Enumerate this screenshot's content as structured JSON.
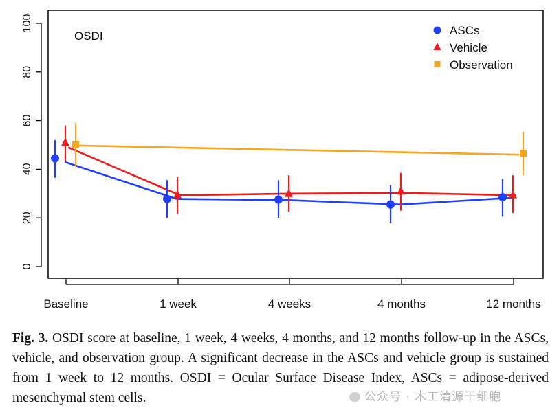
{
  "chart_data": {
    "type": "line",
    "panel_label": "OSDI",
    "categories": [
      "Baseline",
      "1 week",
      "4 weeks",
      "4 months",
      "12 months"
    ],
    "ylim": [
      0,
      100
    ],
    "yticks": [
      "0",
      "20",
      "40",
      "60",
      "80",
      "100"
    ],
    "legend_position": "top-right",
    "series": [
      {
        "name": "ASCs",
        "color": "#1f3fff",
        "marker": "circle",
        "values": [
          44.5,
          27.8,
          27.5,
          25.5,
          28.5
        ],
        "err_low": [
          36.5,
          20.0,
          19.8,
          17.8,
          20.5
        ],
        "err_high": [
          52.0,
          35.5,
          35.5,
          33.5,
          36.0
        ],
        "line_values": [
          43.0,
          27.8,
          27.3,
          25.5,
          28.3
        ]
      },
      {
        "name": "Vehicle",
        "color": "#ee1c1c",
        "marker": "triangle",
        "values": [
          51.0,
          29.5,
          30.0,
          31.0,
          29.5
        ],
        "err_low": [
          43.0,
          21.5,
          22.5,
          23.0,
          22.0
        ],
        "err_high": [
          58.0,
          37.0,
          37.5,
          38.5,
          37.5
        ],
        "line_values": [
          49.0,
          29.3,
          30.0,
          30.3,
          29.3
        ]
      },
      {
        "name": "Observation",
        "color": "#f5a623",
        "marker": "square",
        "values": [
          50.0,
          null,
          null,
          null,
          46.5
        ],
        "err_low": [
          41.0,
          null,
          null,
          null,
          37.5
        ],
        "err_high": [
          59.0,
          null,
          null,
          null,
          55.5
        ],
        "line_values": [
          49.8,
          null,
          null,
          null,
          46.0
        ]
      }
    ]
  },
  "caption": {
    "fig_label": "Fig. 3.",
    "text": " OSDI score at baseline, 1 week, 4 weeks, 4 months, and 12 months follow-up in the ASCs, vehicle, and observation group. A significant decrease in the ASCs and vehicle group is sustained from 1 week to 12 months. OSDI = Ocular Surface Disease Index, ASCs = adipose-derived mesenchymal stem cells."
  },
  "watermark": {
    "text": "公众号 · 木工清源干细胞"
  }
}
